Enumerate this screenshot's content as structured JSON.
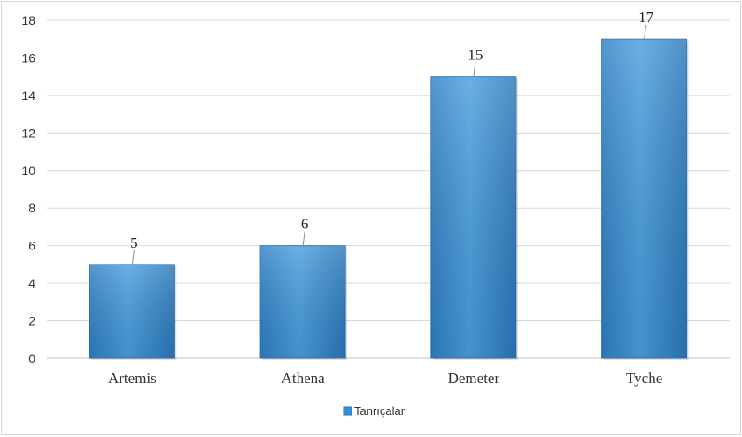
{
  "chart_data": {
    "type": "bar",
    "categories": [
      "Artemis",
      "Athena",
      "Demeter",
      "Tyche"
    ],
    "series": [
      {
        "name": "Tanrıçalar",
        "values": [
          5,
          6,
          15,
          17
        ]
      }
    ],
    "ylim": [
      0,
      18
    ],
    "yticks": [
      0,
      2,
      4,
      6,
      8,
      10,
      12,
      14,
      16,
      18
    ],
    "grid": true,
    "legend": "bottom",
    "data_labels": true,
    "bar_color": "#3a8fd4",
    "title": "",
    "xlabel": "",
    "ylabel": ""
  }
}
